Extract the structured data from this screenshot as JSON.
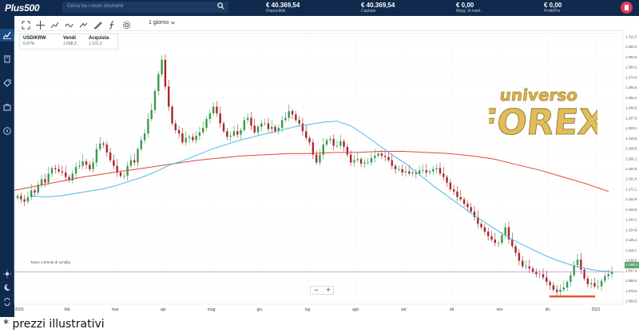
{
  "app": {
    "logo_text": "Plus500",
    "search_placeholder": "Cerca tra i nostri strumenti"
  },
  "account": [
    {
      "value": "€ 40.369,54",
      "label": "Disponibile"
    },
    {
      "value": "€ 40.369,54",
      "label": "Capitale"
    },
    {
      "value": "€ 0,00",
      "label": "Marg. di mant."
    },
    {
      "value": "€ 0,00",
      "label": "Profit/Per"
    }
  ],
  "sidebar_icons": [
    "chart-icon",
    "swap-icon",
    "tag-icon",
    "briefcase-icon",
    "lightning-icon",
    "sun-icon",
    "moon-icon",
    "transfer-icon"
  ],
  "toolbar": {
    "icons": [
      "expand-icon",
      "crosshair-icon",
      "trend-icon",
      "wave-icon",
      "line-icon",
      "drawing-icon",
      "function-icon",
      "gear-icon"
    ],
    "period": "1 giorno"
  },
  "instrument": {
    "symbol": "USD/KRW",
    "change": "0,47%",
    "sell_label": "Vendi",
    "sell_value": "1.098,3",
    "buy_label": "Acquista",
    "buy_value": "1.101,3"
  },
  "current_rate_label": "Tasso corrente di vendita",
  "current_rate_value": "1.098,3",
  "zoom": {
    "minus": "−",
    "plus": "+"
  },
  "watermark": {
    "line1": "universo",
    "line2": "FOREX"
  },
  "disclaimer": "* prezzi illustrativi",
  "colors": {
    "topbar": "#0f2a4d",
    "up_candle": "#3a9a4a",
    "down_candle": "#a8262e",
    "ma_short": "#4fb9e6",
    "ma_long": "#e0473b",
    "current_rate": "#c46bd6",
    "support_line": "#e25a2a"
  },
  "chart_data": {
    "type": "candlestick",
    "instrument": "USD/KRW",
    "x_ticks": [
      "2020",
      "feb",
      "mar",
      "apr",
      "mag",
      "giu",
      "lug",
      "ago",
      "set",
      "ott",
      "nov",
      "dic",
      "2021"
    ],
    "y_ticks": [
      "1.311,5",
      "1.302,0",
      "1.293,6",
      "1.284,2",
      "1.274,9",
      "1.265,6",
      "1.256,2",
      "1.246,8",
      "1.237,5",
      "1.228,1",
      "1.218,8",
      "1.209,5",
      "1.200,1",
      "1.190,8",
      "1.181,4",
      "1.172,1",
      "1.162,8",
      "1.153,5",
      "1.144,1",
      "1.134,8",
      "1.125,4",
      "1.116,1",
      "1.106,8",
      "1.097,4",
      "1.088,0",
      "1.078,6",
      "1.069,3"
    ],
    "ylim": [
      1069,
      1311.5
    ],
    "grid": true,
    "series": [
      {
        "name": "",
        "kind": "candles",
        "values": [
          1166,
          1163,
          1161,
          1165,
          1171,
          1169,
          1176,
          1181,
          1178,
          1186,
          1191,
          1190,
          1188,
          1187,
          1183,
          1180,
          1186,
          1192,
          1193,
          1197,
          1194,
          1190,
          1196,
          1208,
          1213,
          1212,
          1205,
          1198,
          1193,
          1187,
          1184,
          1184,
          1193,
          1198,
          1196,
          1208,
          1216,
          1222,
          1235,
          1243,
          1260,
          1275,
          1288,
          1264,
          1246,
          1231,
          1225,
          1222,
          1214,
          1218,
          1219,
          1216,
          1220,
          1223,
          1227,
          1235,
          1240,
          1246,
          1240,
          1231,
          1224,
          1219,
          1220,
          1224,
          1221,
          1225,
          1234,
          1236,
          1229,
          1223,
          1228,
          1231,
          1231,
          1226,
          1228,
          1224,
          1227,
          1234,
          1236,
          1242,
          1239,
          1234,
          1231,
          1224,
          1218,
          1214,
          1203,
          1196,
          1203,
          1212,
          1216,
          1217,
          1211,
          1211,
          1215,
          1210,
          1203,
          1196,
          1198,
          1199,
          1195,
          1196,
          1196,
          1200,
          1202,
          1204,
          1202,
          1201,
          1198,
          1193,
          1190,
          1190,
          1187,
          1188,
          1186,
          1187,
          1186,
          1189,
          1189,
          1187,
          1188,
          1190,
          1191,
          1186,
          1183,
          1178,
          1172,
          1170,
          1165,
          1163,
          1159,
          1156,
          1152,
          1147,
          1141,
          1138,
          1134,
          1130,
          1127,
          1124,
          1124,
          1131,
          1138,
          1127,
          1121,
          1115,
          1108,
          1103,
          1103,
          1101,
          1098,
          1096,
          1096,
          1093,
          1089,
          1086,
          1082,
          1080,
          1082,
          1084,
          1089,
          1095,
          1104,
          1109,
          1100,
          1092,
          1087,
          1088,
          1085,
          1085,
          1090,
          1094,
          1096,
          1098
        ]
      },
      {
        "name": "",
        "kind": "moving-average-short",
        "values": [
          1166,
          1165,
          1166,
          1168,
          1170,
          1172,
          1175,
          1179,
          1183,
          1188,
          1194,
          1198,
          1203,
          1208,
          1212,
          1216,
          1219,
          1222,
          1225,
          1228,
          1230,
          1232,
          1233,
          1229,
          1221,
          1212,
          1203,
          1195,
          1185,
          1175,
          1166,
          1157,
          1148,
          1140,
          1132,
          1125,
          1119,
          1113,
          1108,
          1104,
          1101,
          1099,
          1098
        ]
      },
      {
        "name": "",
        "kind": "moving-average-long",
        "values": [
          1171,
          1175,
          1179,
          1183,
          1186,
          1189,
          1192,
          1195,
          1198,
          1200,
          1202,
          1203,
          1204,
          1204,
          1205,
          1205,
          1206,
          1206,
          1205,
          1204,
          1202,
          1199,
          1194,
          1189,
          1183,
          1177,
          1170
        ]
      }
    ]
  }
}
